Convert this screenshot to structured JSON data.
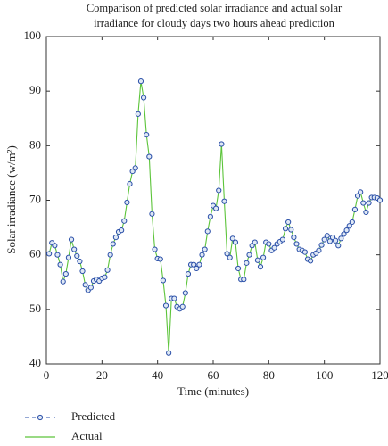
{
  "chart_data": {
    "type": "line",
    "title": [
      "Comparison of predicted solar irradiance and actual solar",
      "irradiance for cloudy days two hours ahead prediction"
    ],
    "x_label": "Time (minutes)",
    "y_label": "Solar irradiance (w/m²)",
    "x": [
      1,
      2,
      3,
      4,
      5,
      6,
      7,
      8,
      9,
      10,
      11,
      12,
      13,
      14,
      15,
      16,
      17,
      18,
      19,
      20,
      21,
      22,
      23,
      24,
      25,
      26,
      27,
      28,
      29,
      30,
      31,
      32,
      33,
      34,
      35,
      36,
      37,
      38,
      39,
      40,
      41,
      42,
      43,
      44,
      45,
      46,
      47,
      48,
      49,
      50,
      51,
      52,
      53,
      54,
      55,
      56,
      57,
      58,
      59,
      60,
      61,
      62,
      63,
      64,
      65,
      66,
      67,
      68,
      69,
      70,
      71,
      72,
      73,
      74,
      75,
      76,
      77,
      78,
      79,
      80,
      81,
      82,
      83,
      84,
      85,
      86,
      87,
      88,
      89,
      90,
      91,
      92,
      93,
      94,
      95,
      96,
      97,
      98,
      99,
      100,
      101,
      102,
      103,
      104,
      105,
      106,
      107,
      108,
      109,
      110,
      111,
      112,
      113,
      114,
      115,
      116,
      117,
      118,
      119,
      120
    ],
    "series": [
      {
        "name": "Predicted",
        "color": "#2a4fa8",
        "marker": "circle",
        "values": [
          60.2,
          62.2,
          61.7,
          60.0,
          58.2,
          55.1,
          56.5,
          59.5,
          62.8,
          61.0,
          59.8,
          58.8,
          57.0,
          54.5,
          53.5,
          54.0,
          55.2,
          55.5,
          55.2,
          55.7,
          55.9,
          57.2,
          60.0,
          62.0,
          63.2,
          64.2,
          64.5,
          66.2,
          69.6,
          73.0,
          75.3,
          75.9,
          85.8,
          91.8,
          88.8,
          82.0,
          78.0,
          67.5,
          61.0,
          59.3,
          59.2,
          55.3,
          50.7,
          42.0,
          52.0,
          52.0,
          50.5,
          50.1,
          50.5,
          53.0,
          56.5,
          58.2,
          58.2,
          57.5,
          58.2,
          60.0,
          61.0,
          64.3,
          67.0,
          69.0,
          68.5,
          71.8,
          80.3,
          69.8,
          60.2,
          59.5,
          63.0,
          62.3,
          57.5,
          55.5,
          55.5,
          58.5,
          60.0,
          61.7,
          62.3,
          59.0,
          57.8,
          59.5,
          62.3,
          62.0,
          60.8,
          61.3,
          62.0,
          62.4,
          62.8,
          64.8,
          66.0,
          64.6,
          63.2,
          62.0,
          61.0,
          60.8,
          60.5,
          59.2,
          58.9,
          60.0,
          60.3,
          60.8,
          61.8,
          62.8,
          63.5,
          62.5,
          63.2,
          62.6,
          61.7,
          63.0,
          63.8,
          64.5,
          65.3,
          66.0,
          68.3,
          70.8,
          71.5,
          69.5,
          67.8,
          69.5,
          70.5,
          70.5,
          70.4,
          70.0
        ]
      },
      {
        "name": "Actual",
        "color": "#5cc43a",
        "marker": "none",
        "values": [
          60.2,
          62.2,
          61.7,
          60.0,
          58.2,
          55.1,
          56.5,
          59.5,
          62.8,
          61.0,
          59.8,
          58.8,
          57.0,
          54.5,
          53.5,
          54.0,
          55.2,
          55.5,
          55.2,
          55.7,
          55.9,
          57.2,
          60.0,
          62.0,
          63.2,
          64.2,
          64.5,
          66.2,
          69.6,
          73.0,
          75.3,
          75.9,
          85.8,
          91.8,
          88.8,
          82.0,
          78.0,
          67.5,
          61.0,
          59.3,
          59.2,
          55.3,
          50.7,
          42.0,
          52.0,
          52.0,
          50.5,
          50.1,
          50.5,
          53.0,
          56.5,
          58.2,
          58.2,
          57.5,
          58.2,
          60.0,
          61.0,
          64.3,
          67.0,
          69.0,
          68.5,
          71.8,
          80.3,
          69.8,
          60.2,
          59.5,
          63.0,
          62.3,
          57.5,
          55.5,
          55.5,
          58.5,
          60.0,
          61.7,
          62.3,
          59.0,
          57.8,
          59.5,
          62.3,
          62.0,
          60.8,
          61.3,
          62.0,
          62.4,
          62.8,
          64.8,
          66.0,
          64.6,
          63.2,
          62.0,
          61.0,
          60.8,
          60.5,
          59.2,
          58.9,
          60.0,
          60.3,
          60.8,
          61.8,
          62.8,
          63.5,
          62.5,
          63.2,
          62.6,
          61.7,
          63.0,
          63.8,
          64.5,
          65.3,
          66.0,
          68.3,
          70.8,
          71.5,
          69.5,
          67.8,
          69.5,
          70.5,
          70.5,
          70.4,
          70.0
        ]
      }
    ],
    "xlim": [
      0,
      120
    ],
    "xticks": [
      0,
      20,
      40,
      60,
      80,
      100,
      120
    ],
    "ylim": [
      40,
      100
    ],
    "yticks": [
      40,
      50,
      60,
      70,
      80,
      90,
      100
    ],
    "grid": false,
    "legend": "bottom-left"
  }
}
